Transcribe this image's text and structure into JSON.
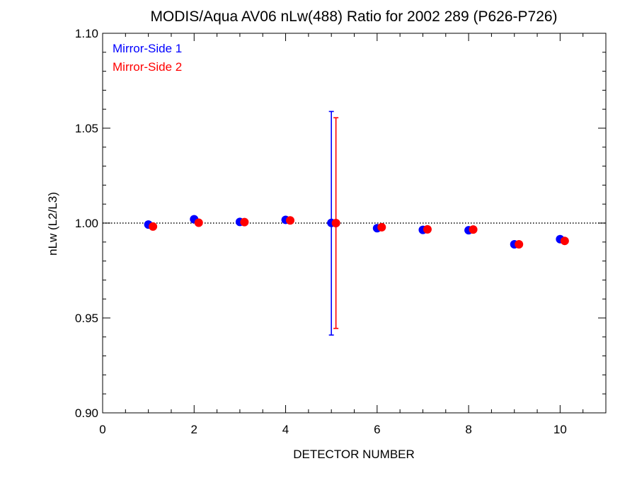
{
  "chart_data": {
    "type": "scatter",
    "title": "MODIS/Aqua AV06 nLw(488) Ratio for 2002 289 (P626-P726)",
    "xlabel": "DETECTOR NUMBER",
    "ylabel": "nLw (L2/L3)",
    "xlim": [
      0,
      11
    ],
    "ylim": [
      0.9,
      1.1
    ],
    "x_ticks": [
      0,
      2,
      4,
      6,
      8,
      10
    ],
    "x_tick_labels": [
      "0",
      "2",
      "4",
      "6",
      "8",
      "10"
    ],
    "y_ticks": [
      0.9,
      0.95,
      1.0,
      1.05,
      1.1
    ],
    "y_tick_labels": [
      "0.90",
      "0.95",
      "1.00",
      "1.05",
      "1.10"
    ],
    "reference_line": 1.0,
    "grid": false,
    "legend_position": "top-left",
    "series": [
      {
        "name": "Mirror-Side 1",
        "color": "#0000ff",
        "x": [
          1,
          2,
          3,
          4,
          5,
          6,
          7,
          8,
          9,
          10
        ],
        "y": [
          0.9992,
          1.002,
          1.0006,
          1.0017,
          1.0001,
          0.9973,
          0.9964,
          0.9962,
          0.9888,
          0.9915
        ],
        "error_bars": [
          {
            "x": 5,
            "low": 0.941,
            "high": 1.0588
          }
        ]
      },
      {
        "name": "Mirror-Side 2",
        "color": "#ff0000",
        "x": [
          1.1,
          2.1,
          3.1,
          4.1,
          5.1,
          6.1,
          7.1,
          8.1,
          9.1,
          10.1
        ],
        "y": [
          0.9982,
          1.0002,
          1.0005,
          1.0014,
          1.0,
          0.9978,
          0.9967,
          0.9966,
          0.9888,
          0.9906
        ],
        "error_bars": [
          {
            "x": 5.1,
            "low": 0.9445,
            "high": 1.0555
          }
        ]
      }
    ]
  }
}
